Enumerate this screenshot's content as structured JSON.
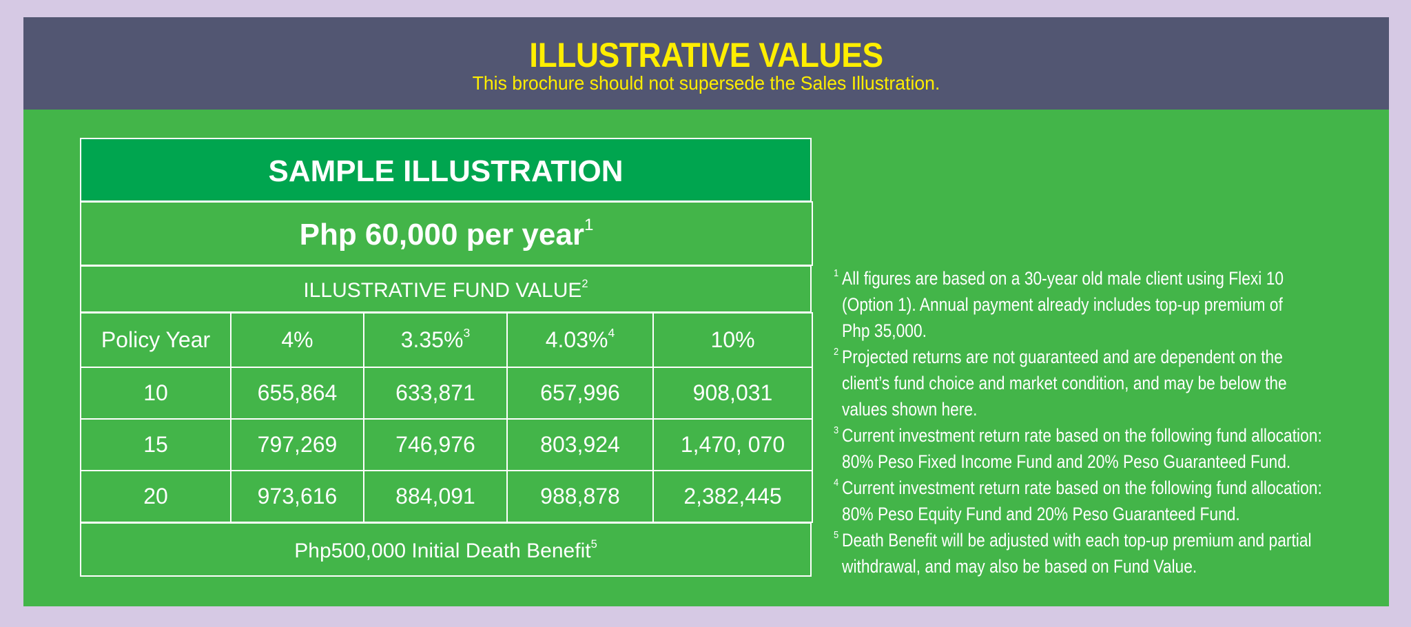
{
  "header": {
    "title": "ILLUSTRATIVE VALUES",
    "subtitle": "This brochure should not supersede the Sales Illustration."
  },
  "colors": {
    "page_background": "#d6c9e4",
    "header_background": "#525672",
    "header_text": "#ffee00",
    "main_background": "#43b549",
    "title_band": "#00a54f",
    "table_text": "#ffffff"
  },
  "illustration": {
    "title": "SAMPLE ILLUSTRATION",
    "premium": "Php 60,000 per year",
    "premium_footnote": "1",
    "fund_value_label": "ILLUSTRATIVE FUND VALUE",
    "fund_value_footnote": "2",
    "columns": [
      {
        "label": "Policy Year",
        "footnote": ""
      },
      {
        "label": "4%",
        "footnote": ""
      },
      {
        "label": "3.35%",
        "footnote": "3"
      },
      {
        "label": "4.03%",
        "footnote": "4"
      },
      {
        "label": "10%",
        "footnote": ""
      }
    ],
    "rows": [
      {
        "year": "10",
        "v4": "655,864",
        "v335": "633,871",
        "v403": "657,996",
        "v10": "908,031"
      },
      {
        "year": "15",
        "v4": "797,269",
        "v335": "746,976",
        "v403": "803,924",
        "v10": "1,470, 070"
      },
      {
        "year": "20",
        "v4": "973,616",
        "v335": "884,091",
        "v403": "988,878",
        "v10": "2,382,445"
      }
    ],
    "death_benefit": "Php500,000 Initial Death Benefit",
    "death_benefit_footnote": "5"
  },
  "footnotes": [
    {
      "num": "1",
      "lines": [
        "All figures are based on a 30-year old male client using Flexi 10",
        "(Option 1).  Annual payment already includes top-up premium of",
        "Php 35,000."
      ]
    },
    {
      "num": "2",
      "lines": [
        "Projected returns are not guaranteed and are dependent on the",
        "client’s fund choice and market condition, and may be below the",
        "values shown here."
      ]
    },
    {
      "num": "3",
      "lines": [
        "Current investment return rate based on the following fund allocation:",
        "80% Peso Fixed Income Fund and 20% Peso Guaranteed Fund."
      ]
    },
    {
      "num": "4",
      "lines": [
        "Current investment return rate based on the following fund allocation:",
        "80% Peso Equity Fund and 20% Peso Guaranteed Fund."
      ]
    },
    {
      "num": "5",
      "lines": [
        "Death Benefit will be adjusted with each top-up premium and partial",
        "withdrawal, and may also be based on Fund Value."
      ]
    }
  ]
}
